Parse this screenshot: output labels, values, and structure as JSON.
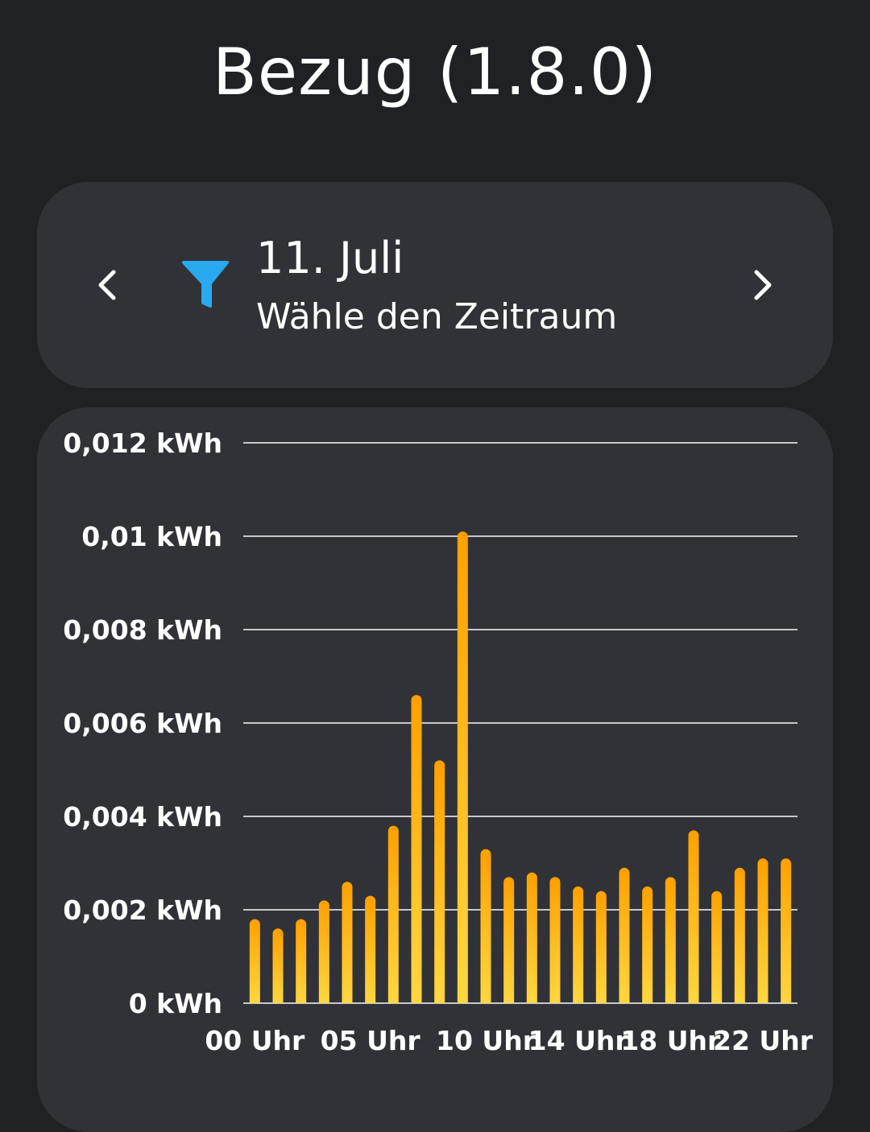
{
  "header": {
    "title": "Bezug (1.8.0)"
  },
  "date_picker": {
    "date_label": "11. Juli",
    "subtitle": "Wähle den Zeitraum",
    "prev_icon": "chevron-left-icon",
    "next_icon": "chevron-right-icon",
    "filter_icon": "filter-icon",
    "filter_color": "#29a9ef"
  },
  "chart_data": {
    "type": "bar",
    "title": "",
    "xlabel": "",
    "ylabel": "",
    "ylim": [
      0,
      0.012
    ],
    "y_ticks": [
      0,
      0.002,
      0.004,
      0.006,
      0.008,
      0.01,
      0.012
    ],
    "y_tick_labels": [
      "0 kWh",
      "0,002 kWh",
      "0,004 kWh",
      "0,006 kWh",
      "0,008 kWh",
      "0,01 kWh",
      "0,012 kWh"
    ],
    "x_tick_labels": [
      {
        "hour": 0,
        "label": "00 Uhr"
      },
      {
        "hour": 5,
        "label": "05 Uhr"
      },
      {
        "hour": 10,
        "label": "10 Uhr"
      },
      {
        "hour": 14,
        "label": "14 Uhr"
      },
      {
        "hour": 18,
        "label": "18 Uhr"
      },
      {
        "hour": 22,
        "label": "22 Uhr"
      }
    ],
    "categories": [
      0,
      1,
      2,
      3,
      4,
      5,
      6,
      7,
      8,
      9,
      10,
      11,
      12,
      13,
      14,
      15,
      16,
      17,
      18,
      19,
      20,
      21,
      22,
      23
    ],
    "values": [
      0.0018,
      0.0016,
      0.0018,
      0.0022,
      0.0026,
      0.0023,
      0.0038,
      0.0066,
      0.0052,
      0.0101,
      0.0033,
      0.0027,
      0.0028,
      0.0027,
      0.0025,
      0.0024,
      0.0029,
      0.0025,
      0.0027,
      0.0037,
      0.0024,
      0.0029,
      0.0031,
      0.0031
    ],
    "grid": true,
    "bar_color_top": "#ffa000",
    "bar_color_bottom": "#ffd740",
    "grid_color": "#c8c8cc"
  }
}
